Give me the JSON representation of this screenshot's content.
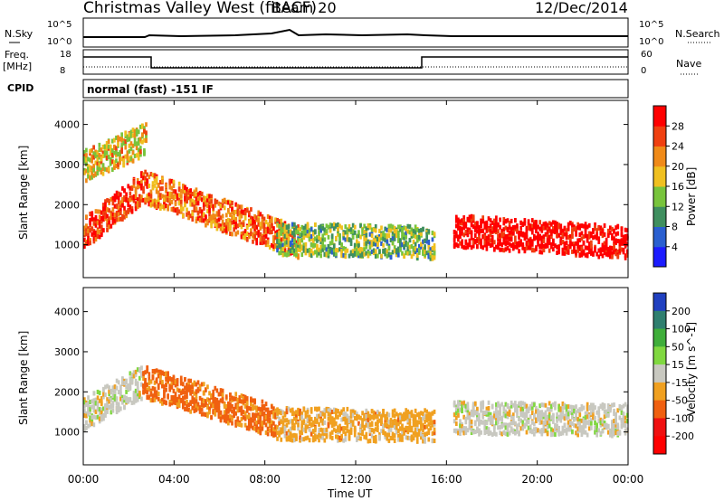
{
  "header": {
    "station": "Christmas Valley West (fitACF)",
    "beam": "Beam 20",
    "date": "12/Dec/2014"
  },
  "top_panels": {
    "nsky_label": "N.Sky",
    "nsearch_label": "N.Search",
    "noise_ticks": [
      "10^5",
      "10^0"
    ],
    "freq_label": "Freq.",
    "freq_unit": "[MHz]",
    "freq_ticks": [
      "18",
      "8"
    ],
    "nave_label": "Nave",
    "nave_ticks": [
      "60",
      "0"
    ],
    "cpid_label": "CPID",
    "cpid_value": "normal (fast) -151 IF"
  },
  "chart_data": [
    {
      "type": "heatmap",
      "title": "",
      "xlabel": "Time UT",
      "ylabel": "Slant Range [km]",
      "xlim": [
        "00:00",
        "24:00"
      ],
      "ylim": [
        180,
        4600
      ],
      "x_ticks": [
        "00:00",
        "04:00",
        "08:00",
        "12:00",
        "16:00",
        "20:00",
        "00:00"
      ],
      "y_ticks": [
        1000,
        2000,
        3000,
        4000
      ],
      "colorbar_label": "Power [dB]",
      "colorbar_ticks": [
        4,
        8,
        12,
        16,
        20,
        24,
        28
      ],
      "colorbar_colors": [
        "#1c1cff",
        "#2a5fd0",
        "#3f8f5f",
        "#78c43c",
        "#f0c020",
        "#f08a18",
        "#f04010",
        "#ff0000"
      ],
      "scatter_bands": [
        {
          "t_start": 0.0,
          "t_end": 2.6,
          "r_center_start": 1350,
          "r_center_end": 2500,
          "value": 24
        },
        {
          "t_start": 0.0,
          "t_end": 2.8,
          "r_center_start": 3000,
          "r_center_end": 3700,
          "value": 18
        },
        {
          "t_start": 2.6,
          "t_end": 9.5,
          "r_center_start": 2500,
          "r_center_end": 1100,
          "value": 22
        },
        {
          "t_start": 8.5,
          "t_end": 15.5,
          "r_center_start": 1200,
          "r_center_end": 1100,
          "value": 14
        },
        {
          "t_start": 16.3,
          "t_end": 24.0,
          "r_center_start": 1400,
          "r_center_end": 1100,
          "value": 28
        }
      ]
    },
    {
      "type": "heatmap",
      "title": "",
      "xlabel": "Time UT",
      "ylabel": "Slant Range [km]",
      "xlim": [
        "00:00",
        "24:00"
      ],
      "ylim": [
        180,
        4600
      ],
      "x_ticks": [
        "00:00",
        "04:00",
        "08:00",
        "12:00",
        "16:00",
        "20:00",
        "00:00"
      ],
      "y_ticks": [
        1000,
        2000,
        3000,
        4000
      ],
      "colorbar_label": "Velocity [m s^-1]",
      "colorbar_ticks": [
        200,
        100,
        50,
        15,
        -15,
        -50,
        -100,
        -200
      ],
      "colorbar_colors": [
        "#2040c0",
        "#2f7f6f",
        "#3fae3a",
        "#80d840",
        "#c8c8c0",
        "#f0a020",
        "#f06010",
        "#f01010",
        "#ff0000"
      ],
      "scatter_bands": [
        {
          "t_start": 0.0,
          "t_end": 2.6,
          "r_center_start": 1500,
          "r_center_end": 2300,
          "value": 0
        },
        {
          "t_start": 2.6,
          "t_end": 8.5,
          "r_center_start": 2300,
          "r_center_end": 1300,
          "value": -80
        },
        {
          "t_start": 8.5,
          "t_end": 15.5,
          "r_center_start": 1250,
          "r_center_end": 1200,
          "value": -40
        },
        {
          "t_start": 16.3,
          "t_end": 24.0,
          "r_center_start": 1400,
          "r_center_end": 1350,
          "value": 0
        }
      ]
    }
  ]
}
